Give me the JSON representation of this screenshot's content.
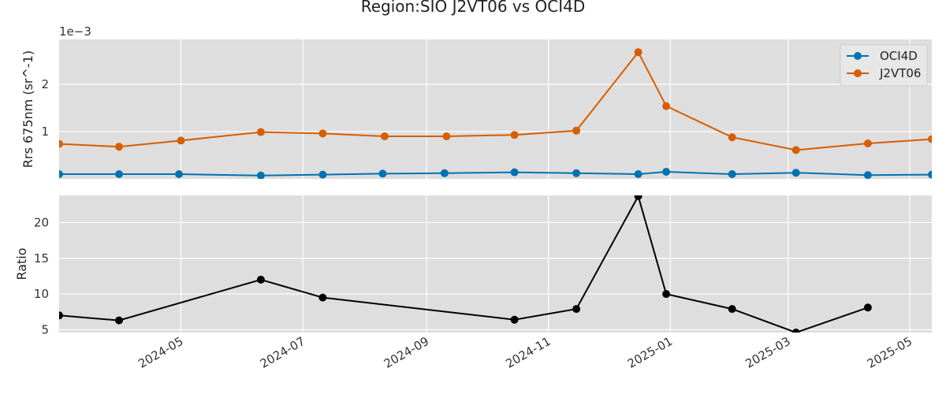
{
  "chart_data": {
    "title": "Region:SIO J2VT06 vs OCI4D",
    "x_range": [
      "2024-03-01",
      "2025-05-12"
    ],
    "x_ticks": [
      "2024-05",
      "2024-07",
      "2024-09",
      "2024-11",
      "2025-01",
      "2025-03",
      "2025-05"
    ],
    "grid": true,
    "panels": [
      {
        "type": "line",
        "ylabel": "Rrs 675nm (sr^-1)",
        "offset_text": "1e−3",
        "ylim": [
          0.0002,
          2.95
        ],
        "y_ticks": [
          1,
          2
        ],
        "legend": "top-right",
        "series": [
          {
            "name": "OCI4D",
            "color": "#0072b2",
            "points": [
              {
                "x": "2024-03-01",
                "y": 0.1
              },
              {
                "x": "2024-03-31",
                "y": 0.1
              },
              {
                "x": "2024-04-30",
                "y": 0.1
              },
              {
                "x": "2024-06-10",
                "y": 0.07
              },
              {
                "x": "2024-07-11",
                "y": 0.09
              },
              {
                "x": "2024-08-10",
                "y": 0.11
              },
              {
                "x": "2024-09-10",
                "y": 0.12
              },
              {
                "x": "2024-10-15",
                "y": 0.14
              },
              {
                "x": "2024-11-15",
                "y": 0.12
              },
              {
                "x": "2024-12-16",
                "y": 0.1
              },
              {
                "x": "2024-12-30",
                "y": 0.15
              },
              {
                "x": "2025-02-01",
                "y": 0.1
              },
              {
                "x": "2025-03-05",
                "y": 0.13
              },
              {
                "x": "2025-04-10",
                "y": 0.08
              },
              {
                "x": "2025-05-12",
                "y": 0.09
              }
            ]
          },
          {
            "name": "J2VT06",
            "color": "#d55e00",
            "points": [
              {
                "x": "2024-03-01",
                "y": 0.74
              },
              {
                "x": "2024-03-31",
                "y": 0.68
              },
              {
                "x": "2024-05-01",
                "y": 0.81
              },
              {
                "x": "2024-06-10",
                "y": 0.99
              },
              {
                "x": "2024-07-11",
                "y": 0.96
              },
              {
                "x": "2024-08-11",
                "y": 0.9
              },
              {
                "x": "2024-09-11",
                "y": 0.9
              },
              {
                "x": "2024-10-15",
                "y": 0.93
              },
              {
                "x": "2024-11-15",
                "y": 1.02
              },
              {
                "x": "2024-12-16",
                "y": 2.68
              },
              {
                "x": "2024-12-30",
                "y": 1.54
              },
              {
                "x": "2025-02-01",
                "y": 0.88
              },
              {
                "x": "2025-03-05",
                "y": 0.61
              },
              {
                "x": "2025-04-10",
                "y": 0.75
              },
              {
                "x": "2025-05-12",
                "y": 0.84
              }
            ]
          }
        ]
      },
      {
        "type": "line",
        "ylabel": "Ratio",
        "ylim": [
          4.6,
          23.8
        ],
        "y_ticks": [
          5,
          10,
          15,
          20
        ],
        "series": [
          {
            "color": "#000000",
            "points": [
              {
                "x": "2024-03-01",
                "y": 7.0
              },
              {
                "x": "2024-03-31",
                "y": 6.3
              },
              {
                "x": "2024-06-10",
                "y": 12.0
              },
              {
                "x": "2024-07-11",
                "y": 9.5
              },
              {
                "x": "2024-10-15",
                "y": 6.4
              },
              {
                "x": "2024-11-15",
                "y": 7.9
              },
              {
                "x": "2024-12-16",
                "y": 23.7
              },
              {
                "x": "2024-12-30",
                "y": 10.0
              },
              {
                "x": "2025-02-01",
                "y": 7.9
              },
              {
                "x": "2025-03-05",
                "y": 4.6
              },
              {
                "x": "2025-04-10",
                "y": 8.1
              }
            ]
          }
        ]
      }
    ]
  }
}
